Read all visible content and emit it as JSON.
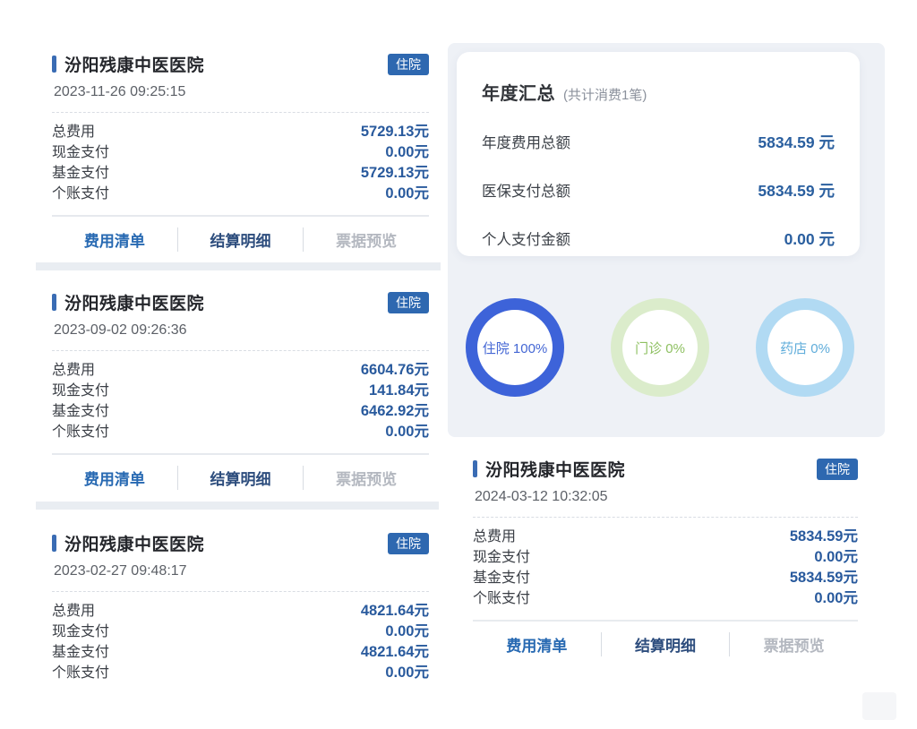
{
  "cards": [
    {
      "hospital": "汾阳残康中医医院",
      "badge": "住院",
      "datetime": "2023-11-26 09:25:15",
      "rows": [
        {
          "label": "总费用",
          "value": "5729.13元"
        },
        {
          "label": "现金支付",
          "value": "0.00元"
        },
        {
          "label": "基金支付",
          "value": "5729.13元"
        },
        {
          "label": "个账支付",
          "value": "0.00元"
        }
      ],
      "buttons": [
        "费用清单",
        "结算明细",
        "票据预览"
      ]
    },
    {
      "hospital": "汾阳残康中医医院",
      "badge": "住院",
      "datetime": "2023-09-02 09:26:36",
      "rows": [
        {
          "label": "总费用",
          "value": "6604.76元"
        },
        {
          "label": "现金支付",
          "value": "141.84元"
        },
        {
          "label": "基金支付",
          "value": "6462.92元"
        },
        {
          "label": "个账支付",
          "value": "0.00元"
        }
      ],
      "buttons": [
        "费用清单",
        "结算明细",
        "票据预览"
      ]
    },
    {
      "hospital": "汾阳残康中医医院",
      "badge": "住院",
      "datetime": "2023-02-27 09:48:17",
      "rows": [
        {
          "label": "总费用",
          "value": "4821.64元"
        },
        {
          "label": "现金支付",
          "value": "0.00元"
        },
        {
          "label": "基金支付",
          "value": "4821.64元"
        },
        {
          "label": "个账支付",
          "value": "0.00元"
        }
      ]
    },
    {
      "hospital": "汾阳残康中医医院",
      "badge": "住院",
      "datetime": "2024-03-12 10:32:05",
      "rows": [
        {
          "label": "总费用",
          "value": "5834.59元"
        },
        {
          "label": "现金支付",
          "value": "0.00元"
        },
        {
          "label": "基金支付",
          "value": "5834.59元"
        },
        {
          "label": "个账支付",
          "value": "0.00元"
        }
      ],
      "buttons": [
        "费用清单",
        "结算明细",
        "票据预览"
      ]
    }
  ],
  "summary": {
    "title": "年度汇总",
    "subtitle": "(共计消费1笔)",
    "rows": [
      {
        "label": "年度费用总额",
        "value": "5834.59 元"
      },
      {
        "label": "医保支付总额",
        "value": "5834.59 元"
      },
      {
        "label": "个人支付金额",
        "value": "0.00 元"
      }
    ]
  },
  "donuts": [
    {
      "label": "住院 100%",
      "ring_color": "#3d63d9",
      "text_color": "#4366d4"
    },
    {
      "label": "门诊 0%",
      "ring_color": "#dbeccb",
      "text_color": "#8ec061"
    },
    {
      "label": "药店 0%",
      "ring_color": "#b1daf3",
      "text_color": "#5facda"
    }
  ],
  "theme": {
    "badge_bg": "#2e68b0",
    "accent_bar": "#3a6cb4",
    "amount_blue": "#295a9d",
    "button_blue": "#2769b2",
    "button_navy": "#2d4d7d",
    "button_disabled_gray": "#b4b8c0",
    "panel_gray": "#eef1f6",
    "card_band_gray": "#e9edf2"
  }
}
